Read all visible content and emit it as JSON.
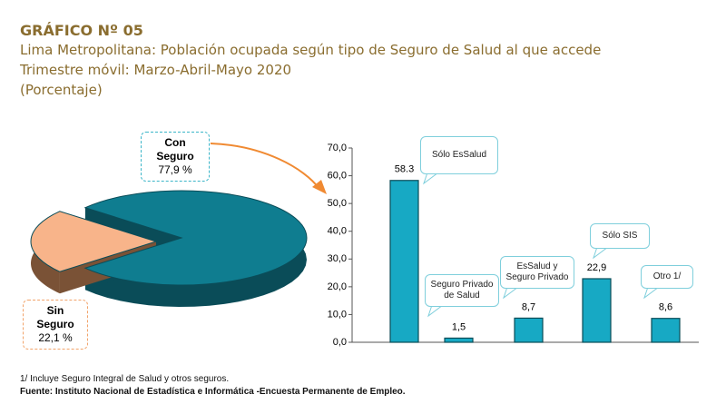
{
  "header": {
    "title": "GRÁFICO Nº 05",
    "lines": [
      "Lima Metropolitana: Población ocupada según tipo de Seguro de Salud al que accede",
      "Trimestre móvil: Marzo-Abril-Mayo 2020",
      "(Porcentaje)"
    ]
  },
  "chart_data": [
    {
      "type": "pie",
      "categories": [
        "Con Seguro",
        "Sin Seguro"
      ],
      "values": [
        77.9,
        22.1
      ],
      "value_labels": [
        "77,9 %",
        "22,1 %"
      ],
      "colors": [
        "#0f7d90",
        "#f8b48a"
      ]
    },
    {
      "type": "bar",
      "categories": [
        "Sólo EsSalud",
        "Seguro Privado de Salud",
        "EsSalud y Seguro Privado",
        "Sólo SIS",
        "Otro 1/"
      ],
      "values": [
        58.3,
        1.5,
        8.7,
        22.9,
        8.6
      ],
      "value_labels": [
        "58.3",
        "1,5",
        "8,7",
        "22,9",
        "8,6"
      ],
      "color": "#17a9c4",
      "ylim": [
        0,
        70
      ],
      "yticks": [
        {
          "value": 0,
          "label": "0,0"
        },
        {
          "value": 10,
          "label": "10,0"
        },
        {
          "value": 20,
          "label": "20,0"
        },
        {
          "value": 30,
          "label": "30,0"
        },
        {
          "value": 40,
          "label": "40,0"
        },
        {
          "value": 50,
          "label": "50,0"
        },
        {
          "value": 60,
          "label": "60,0"
        },
        {
          "value": 70,
          "label": "70,0"
        }
      ]
    }
  ],
  "footnote": "1/ Incluye Seguro Integral de Salud y otros seguros.",
  "source": "Fuente: Instituto Nacional de Estadística e Informática -Encuesta Permanente de Empleo."
}
